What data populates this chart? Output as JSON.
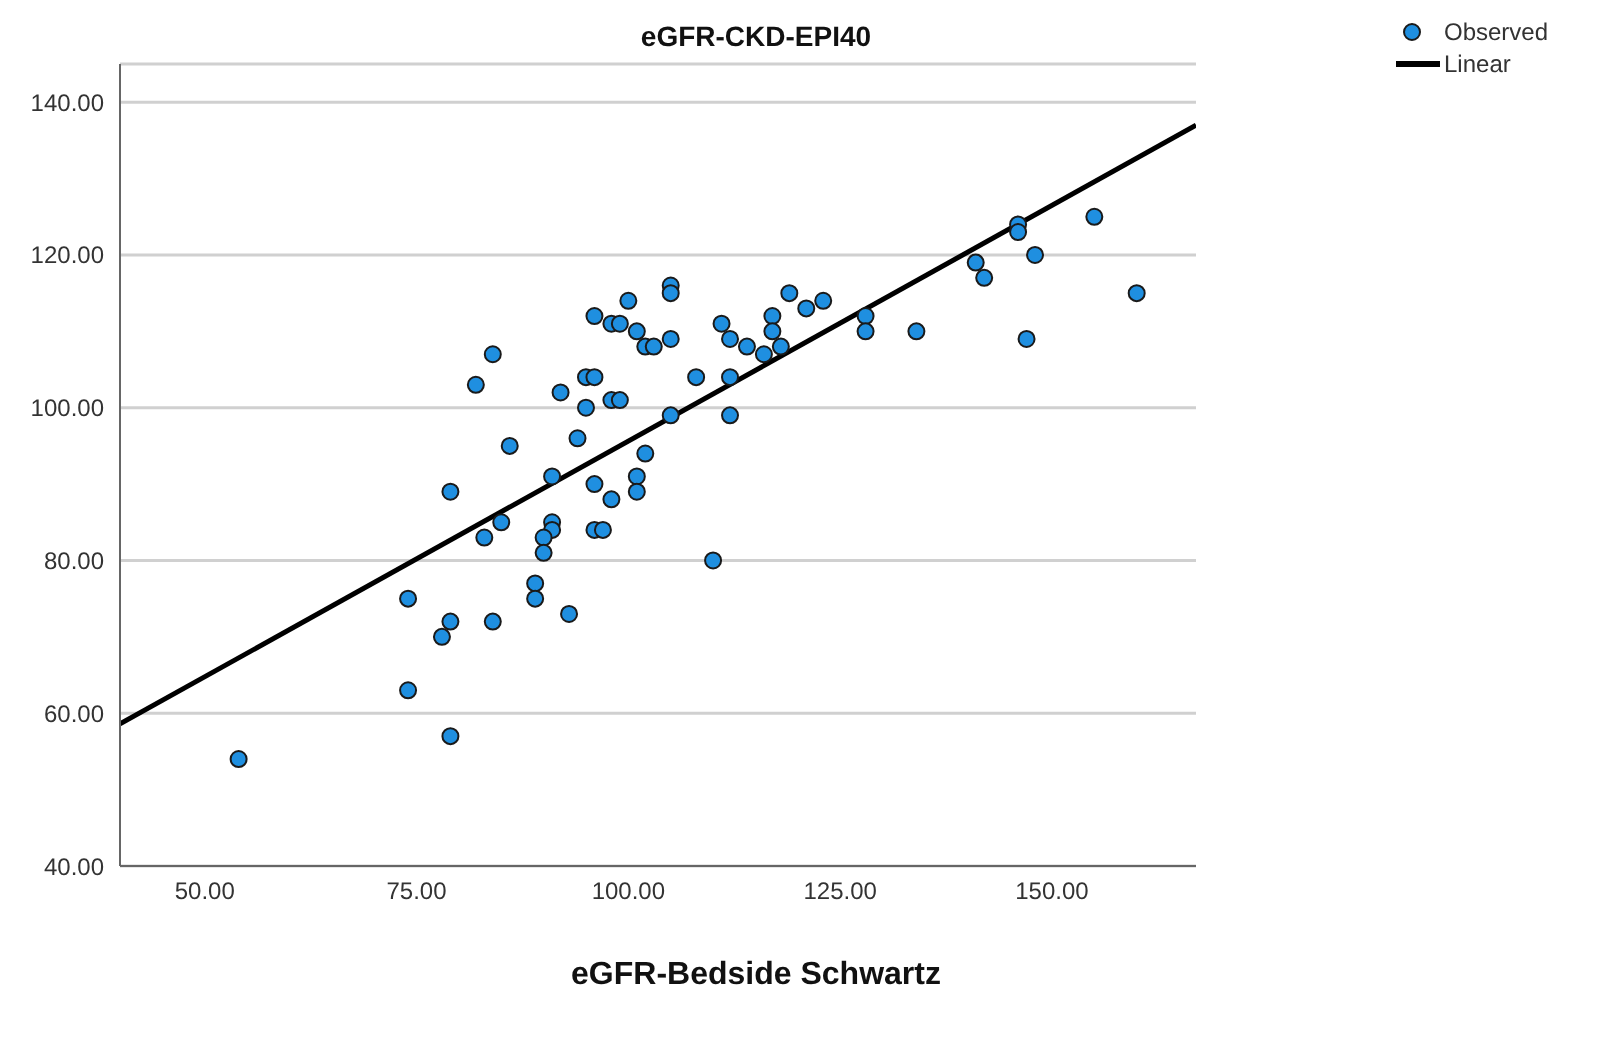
{
  "chart_data": {
    "type": "scatter",
    "title": "eGFR-CKD-EPI40",
    "xlabel": "eGFR-Bedside Schwartz",
    "xlim": [
      40,
      167
    ],
    "ylim": [
      40,
      145
    ],
    "xticks": [
      {
        "value": 50,
        "label": "50.00"
      },
      {
        "value": 75,
        "label": "75.00"
      },
      {
        "value": 100,
        "label": "100.00"
      },
      {
        "value": 125,
        "label": "125.00"
      },
      {
        "value": 150,
        "label": "150.00"
      }
    ],
    "yticks": [
      {
        "value": 40,
        "label": "40.00"
      },
      {
        "value": 60,
        "label": "60.00"
      },
      {
        "value": 80,
        "label": "80.00"
      },
      {
        "value": 100,
        "label": "100.00"
      },
      {
        "value": 120,
        "label": "120.00"
      },
      {
        "value": 140,
        "label": "140.00"
      }
    ],
    "grid": "y",
    "legend": "top right",
    "series": [
      {
        "name": "Observed",
        "marker": "circle",
        "color": "#1f8fe0",
        "x": [
          54,
          74,
          74,
          78,
          79,
          79,
          79,
          82,
          84,
          86,
          92,
          94,
          95,
          96,
          95,
          96,
          98,
          99,
          98,
          99,
          100,
          101,
          102,
          102,
          103,
          105,
          105,
          105,
          108,
          111,
          112,
          112,
          112,
          114,
          116,
          117,
          117,
          118,
          119,
          121,
          123,
          128,
          128,
          134,
          141,
          142,
          146,
          146,
          148,
          147,
          155,
          160,
          105,
          110,
          91,
          101,
          101,
          96,
          98,
          85,
          83,
          91,
          91,
          90,
          90,
          96,
          97,
          89,
          89,
          93,
          84
        ],
        "values": [
          54,
          75,
          63,
          70,
          72,
          89,
          57,
          103,
          107,
          95,
          102,
          96,
          104,
          104,
          100,
          112,
          111,
          111,
          101,
          101,
          114,
          110,
          108,
          94,
          108,
          116,
          115,
          109,
          104,
          111,
          109,
          104,
          99,
          108,
          107,
          112,
          110,
          108,
          115,
          113,
          114,
          112,
          110,
          110,
          119,
          117,
          124,
          123,
          120,
          109,
          125,
          115,
          99,
          80,
          91,
          91,
          89,
          90,
          88,
          85,
          83,
          85,
          84,
          83,
          81,
          84,
          84,
          77,
          75,
          73,
          72
        ]
      },
      {
        "name": "Linear",
        "type": "line",
        "color": "#000000",
        "x": [
          40,
          167
        ],
        "values": [
          58.6,
          137
        ],
        "line_style": "solid",
        "marker": "none"
      }
    ]
  }
}
